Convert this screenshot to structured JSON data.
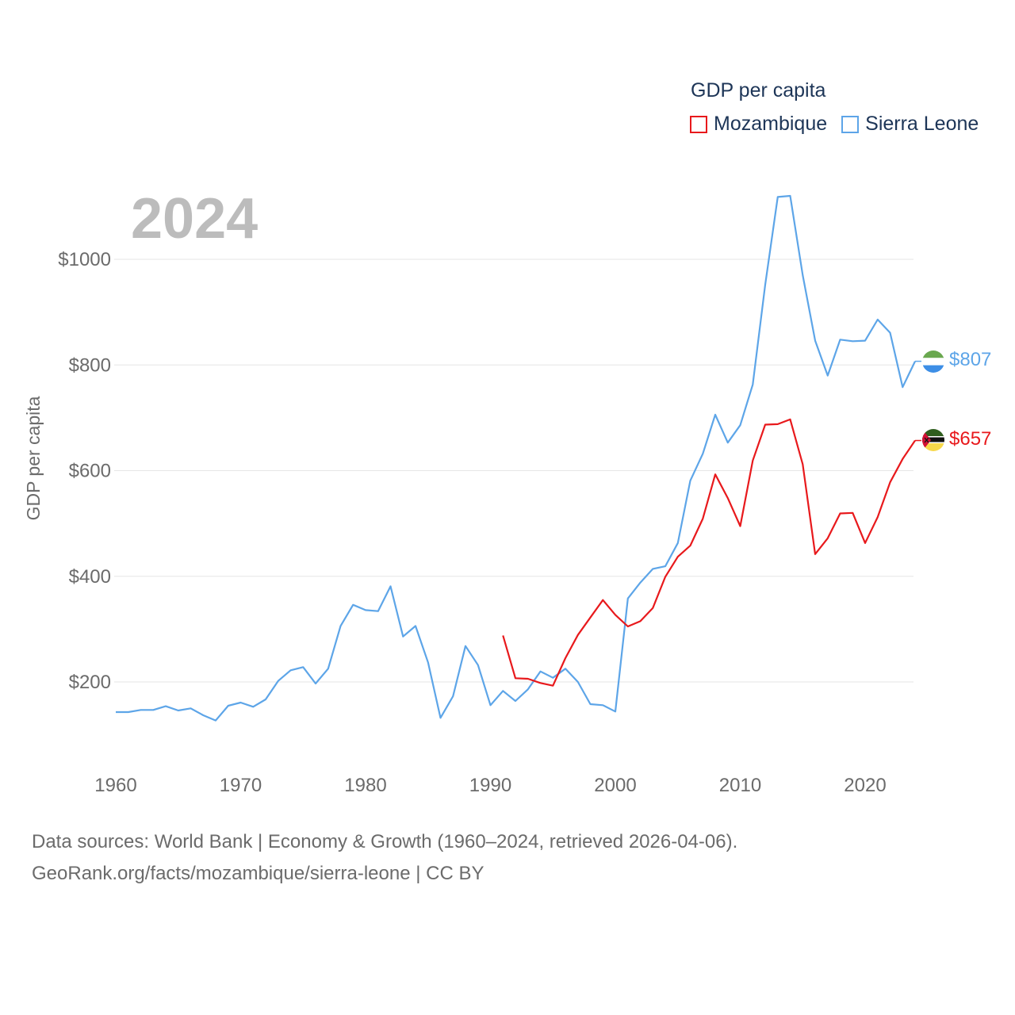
{
  "legend": {
    "title": "GDP per capita",
    "items": [
      {
        "label": "Mozambique",
        "color": "#e8191c"
      },
      {
        "label": "Sierra Leone",
        "color": "#5da5e8"
      }
    ]
  },
  "footer": {
    "line1": "Data sources: World Bank | Economy & Growth (1960–2024, retrieved 2026-04-06).",
    "line2": "GeoRank.org/facts/mozambique/sierra-leone | CC BY"
  },
  "chart_data": {
    "type": "line",
    "year_label": "2024",
    "ylabel": "GDP per capita",
    "xlim": [
      1960,
      2024
    ],
    "ylim": [
      100,
      1150
    ],
    "x_ticks": [
      1960,
      1970,
      1980,
      1990,
      2000,
      2010,
      2020
    ],
    "y_ticks": [
      200,
      400,
      600,
      800,
      1000
    ],
    "y_tick_labels": [
      "$200",
      "$400",
      "$600",
      "$800",
      "$1000"
    ],
    "grid": true,
    "series": [
      {
        "name": "Sierra Leone",
        "color": "#5da5e8",
        "flag": "sierra-leone-flag",
        "end_label": "$807",
        "start_year": 1960,
        "values": [
          143,
          143,
          147,
          147,
          154,
          146,
          150,
          137,
          127,
          155,
          161,
          153,
          167,
          202,
          222,
          228,
          197,
          225,
          306,
          346,
          336,
          334,
          381,
          286,
          306,
          237,
          132,
          173,
          268,
          232,
          156,
          183,
          164,
          186,
          220,
          208,
          225,
          200,
          158,
          156,
          144,
          358,
          388,
          414,
          419,
          463,
          581,
          632,
          706,
          653,
          686,
          763,
          952,
          1118,
          1120,
          970,
          846,
          780,
          848,
          845,
          846,
          886,
          861,
          758,
          807
        ]
      },
      {
        "name": "Mozambique",
        "color": "#e8191c",
        "flag": "mozambique-flag",
        "end_label": "$657",
        "start_year": 1991,
        "values": [
          288,
          207,
          206,
          198,
          193,
          245,
          289,
          322,
          355,
          327,
          305,
          315,
          340,
          399,
          437,
          458,
          509,
          593,
          548,
          495,
          619,
          687,
          688,
          697,
          612,
          442,
          472,
          519,
          520,
          463,
          512,
          578,
          622,
          657
        ]
      }
    ]
  }
}
